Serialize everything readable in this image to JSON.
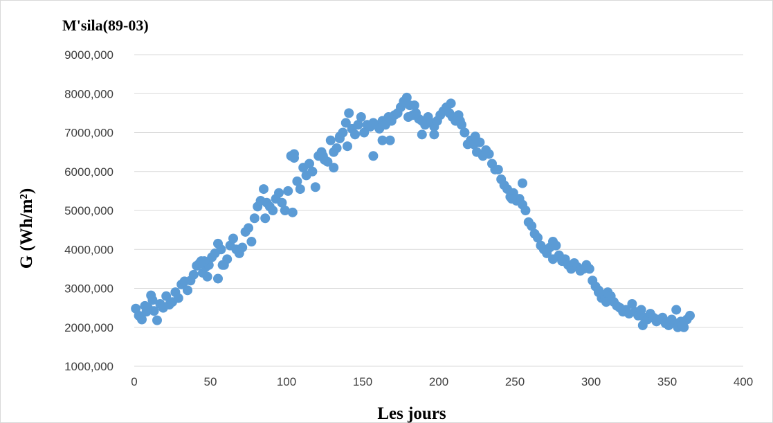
{
  "chart_data": {
    "type": "scatter",
    "title": "M'sila(89-03)",
    "xlabel": "Les jours",
    "ylabel": "G (Wh/m²)",
    "xlim": [
      0,
      400
    ],
    "ylim": [
      1000,
      9000
    ],
    "x_ticks": [
      0,
      50,
      100,
      150,
      200,
      250,
      300,
      350,
      400
    ],
    "x_tick_labels": [
      "0",
      "50",
      "100",
      "150",
      "200",
      "250",
      "300",
      "350",
      "400"
    ],
    "y_ticks": [
      1000,
      2000,
      3000,
      4000,
      5000,
      6000,
      7000,
      8000,
      9000
    ],
    "y_tick_labels": [
      "1000,000",
      "2000,000",
      "3000,000",
      "4000,000",
      "5000,000",
      "6000,000",
      "7000,000",
      "8000,000",
      "9000,000"
    ],
    "grid": "horizontal",
    "legend": "none",
    "marker_color": "#5b9bd5",
    "series": [
      {
        "x": [
          1,
          3,
          5,
          7,
          9,
          11,
          13,
          15,
          17,
          19,
          21,
          23,
          25,
          27,
          29,
          31,
          33,
          35,
          37,
          39,
          41,
          43,
          45,
          47,
          49,
          51,
          53,
          55,
          57,
          59,
          61,
          63,
          65,
          67,
          69,
          71,
          73,
          75,
          77,
          79,
          81,
          83,
          85,
          87,
          89,
          91,
          93,
          95,
          97,
          99,
          101,
          103,
          105,
          107,
          109,
          111,
          113,
          115,
          117,
          119,
          121,
          123,
          125,
          127,
          129,
          131,
          133,
          135,
          137,
          139,
          141,
          143,
          145,
          147,
          149,
          151,
          153,
          155,
          157,
          159,
          161,
          163,
          165,
          167,
          169,
          171,
          173,
          175,
          177,
          179,
          181,
          183,
          185,
          187,
          189,
          191,
          193,
          195,
          197,
          199,
          201,
          203,
          205,
          207,
          209,
          211,
          213,
          215,
          217,
          219,
          221,
          223,
          225,
          227,
          229,
          231,
          233,
          235,
          237,
          239,
          241,
          243,
          245,
          247,
          249,
          251,
          253,
          255,
          257,
          259,
          261,
          263,
          265,
          267,
          269,
          271,
          273,
          275,
          277,
          279,
          281,
          283,
          285,
          287,
          289,
          291,
          293,
          295,
          297,
          299,
          301,
          303,
          305,
          307,
          309,
          311,
          313,
          315,
          317,
          319,
          321,
          323,
          325,
          327,
          329,
          331,
          333,
          335,
          337,
          339,
          341,
          343,
          345,
          347,
          349,
          351,
          353,
          355,
          357,
          359,
          361,
          363,
          365,
          8,
          12,
          46,
          48,
          55,
          58,
          104,
          105,
          140,
          157,
          163,
          168,
          189,
          197,
          44,
          86,
          124,
          131,
          135,
          180,
          184,
          208,
          214,
          224,
          248,
          255,
          275,
          305,
          310,
          334,
          344,
          356,
          360
        ],
        "y": [
          2480,
          2300,
          2200,
          2550,
          2500,
          2820,
          2420,
          2180,
          2600,
          2500,
          2800,
          2580,
          2650,
          2900,
          2750,
          3100,
          3180,
          2950,
          3200,
          3350,
          3580,
          3650,
          3400,
          3550,
          3600,
          3800,
          3900,
          4150,
          4000,
          3600,
          3750,
          4100,
          4280,
          4000,
          3900,
          4050,
          4450,
          4550,
          4200,
          4800,
          5100,
          5250,
          5550,
          5200,
          5100,
          5000,
          5300,
          5450,
          5200,
          5000,
          5500,
          6400,
          6450,
          5750,
          5550,
          6100,
          5900,
          6200,
          6000,
          5600,
          6400,
          6500,
          6300,
          6250,
          6800,
          6500,
          6600,
          6900,
          7000,
          7250,
          7500,
          7100,
          6950,
          7200,
          7400,
          7000,
          7200,
          7150,
          7250,
          7200,
          7100,
          7300,
          7200,
          7400,
          7300,
          7450,
          7500,
          7650,
          7800,
          7900,
          7700,
          7450,
          7500,
          7350,
          7300,
          7200,
          7400,
          7250,
          7150,
          7300,
          7450,
          7550,
          7650,
          7500,
          7400,
          7300,
          7450,
          7200,
          7000,
          6700,
          6800,
          6700,
          6500,
          6750,
          6400,
          6550,
          6450,
          6200,
          6050,
          6050,
          5800,
          5650,
          5550,
          5350,
          5450,
          5250,
          5300,
          5150,
          5000,
          4700,
          4600,
          4400,
          4300,
          4100,
          4000,
          3900,
          4050,
          4200,
          4100,
          3850,
          3700,
          3750,
          3600,
          3500,
          3650,
          3550,
          3450,
          3500,
          3600,
          3500,
          3200,
          3050,
          2950,
          2750,
          2800,
          2900,
          2800,
          2650,
          2550,
          2500,
          2400,
          2450,
          2350,
          2600,
          2400,
          2300,
          2450,
          2250,
          2200,
          2350,
          2250,
          2150,
          2200,
          2250,
          2100,
          2050,
          2200,
          2100,
          2000,
          2150,
          2000,
          2200,
          2300,
          2400,
          2700,
          3700,
          3300,
          3250,
          3600,
          4950,
          6350,
          6650,
          6400,
          6800,
          6800,
          6950,
          6950,
          3700,
          4800,
          6400,
          6100,
          6850,
          7400,
          7700,
          7750,
          7300,
          6900,
          5300,
          5700,
          3750,
          2900,
          2650,
          2050,
          2200,
          2450,
          2050
        ]
      }
    ]
  }
}
